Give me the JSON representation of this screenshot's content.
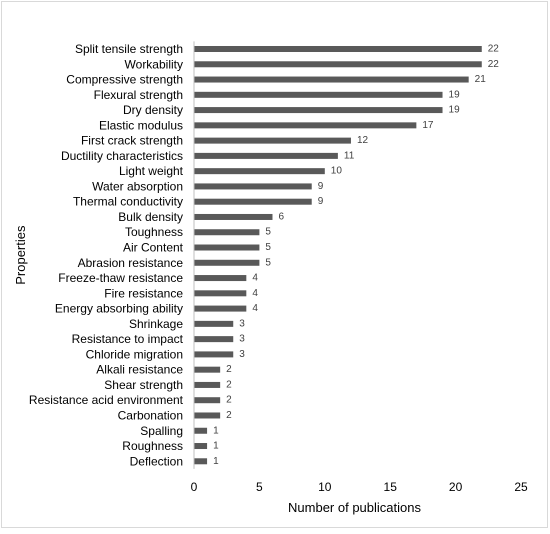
{
  "chart_data": {
    "type": "bar",
    "orientation": "horizontal",
    "title": "",
    "xlabel": "Number of publications",
    "ylabel": "Properties",
    "xlim": [
      0,
      25
    ],
    "xticks": [
      "0",
      "5",
      "10",
      "15",
      "20",
      "25"
    ],
    "grid": false,
    "legend": "none",
    "bar_color": "#595959",
    "categories": [
      "Split tensile strength",
      "Workability",
      "Compressive strength",
      "Flexural strength",
      "Dry density",
      "Elastic modulus",
      "First crack strength",
      "Ductility characteristics",
      "Light weight",
      "Water absorption",
      "Thermal conductivity",
      "Bulk density",
      "Toughness",
      "Air Content",
      "Abrasion resistance",
      "Freeze-thaw resistance",
      "Fire resistance",
      "Energy absorbing ability",
      "Shrinkage",
      "Resistance to impact",
      "Chloride migration",
      "Alkali resistance",
      "Shear strength",
      "Resistance acid environment",
      "Carbonation",
      "Spalling",
      "Roughness",
      "Deflection"
    ],
    "values": [
      22,
      22,
      21,
      19,
      19,
      17,
      12,
      11,
      10,
      9,
      9,
      6,
      5,
      5,
      5,
      4,
      4,
      4,
      3,
      3,
      3,
      2,
      2,
      2,
      2,
      1,
      1,
      1
    ],
    "data_labels": [
      "22",
      "22",
      "21",
      "19",
      "19",
      "17",
      "12",
      "11",
      "10",
      "9",
      "9",
      "6",
      "5",
      "5",
      "5",
      "4",
      "4",
      "4",
      "3",
      "3",
      "3",
      "2",
      "2",
      "2",
      "2",
      "1",
      "1",
      "1"
    ]
  }
}
